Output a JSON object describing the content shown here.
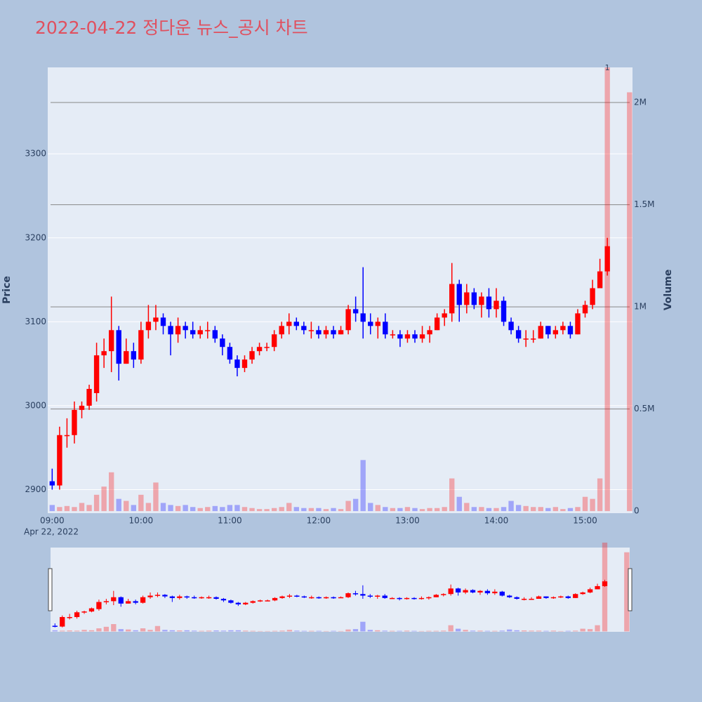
{
  "chart_data": {
    "type": "candlestick",
    "title": "2022-04-22 정다운 뉴스_공시 차트",
    "title_color": "#e0505f",
    "x": [
      "09:00",
      "09:05",
      "09:10",
      "09:15",
      "09:20",
      "09:25",
      "09:30",
      "09:35",
      "09:40",
      "09:45",
      "09:50",
      "09:55",
      "10:00",
      "10:05",
      "10:10",
      "10:15",
      "10:20",
      "10:25",
      "10:30",
      "10:35",
      "10:40",
      "10:45",
      "10:50",
      "10:55",
      "11:00",
      "11:05",
      "11:10",
      "11:15",
      "11:20",
      "11:25",
      "11:30",
      "11:35",
      "11:40",
      "11:45",
      "11:50",
      "11:55",
      "12:00",
      "12:05",
      "12:10",
      "12:15",
      "12:20",
      "12:25",
      "12:30",
      "12:35",
      "12:40",
      "12:45",
      "12:50",
      "12:55",
      "13:00",
      "13:05",
      "13:10",
      "13:15",
      "13:20",
      "13:25",
      "13:30",
      "13:35",
      "13:40",
      "13:45",
      "13:50",
      "13:55",
      "14:00",
      "14:05",
      "14:10",
      "14:15",
      "14:20",
      "14:25",
      "14:30",
      "14:35",
      "14:40",
      "14:45",
      "14:50",
      "14:55",
      "15:00",
      "15:05",
      "15:10",
      "15:15",
      "15:30"
    ],
    "open": [
      2910,
      2905,
      2965,
      2965,
      2995,
      3000,
      3015,
      3060,
      3065,
      3090,
      3050,
      3065,
      3055,
      3090,
      3100,
      3105,
      3095,
      3085,
      3095,
      3090,
      3085,
      3090,
      3090,
      3080,
      3070,
      3055,
      3045,
      3055,
      3065,
      3070,
      3070,
      3085,
      3095,
      3100,
      3095,
      3090,
      3090,
      3085,
      3090,
      3085,
      3090,
      3115,
      3110,
      3100,
      3095,
      3100,
      3085,
      3085,
      3080,
      3085,
      3080,
      3085,
      3090,
      3105,
      3110,
      3145,
      3120,
      3135,
      3120,
      3130,
      3115,
      3125,
      3100,
      3090,
      3080,
      3080,
      3080,
      3095,
      3085,
      3090,
      3095,
      3085,
      3110,
      3120,
      3140,
      3160,
      null
    ],
    "high": [
      2925,
      2975,
      2985,
      3005,
      3005,
      3025,
      3075,
      3080,
      3130,
      3095,
      3080,
      3075,
      3100,
      3120,
      3120,
      3110,
      3100,
      3105,
      3100,
      3100,
      3095,
      3100,
      3095,
      3085,
      3075,
      3060,
      3060,
      3070,
      3075,
      3075,
      3090,
      3100,
      3110,
      3105,
      3100,
      3100,
      3095,
      3095,
      3095,
      3095,
      3120,
      3130,
      3165,
      3110,
      3105,
      3110,
      3090,
      3090,
      3090,
      3090,
      3095,
      3095,
      3110,
      3115,
      3170,
      3150,
      3145,
      3140,
      3135,
      3140,
      3140,
      3130,
      3105,
      3095,
      3090,
      3090,
      3100,
      3095,
      3095,
      3100,
      3100,
      3115,
      3125,
      3150,
      3175,
      3200,
      null
    ],
    "low": [
      2900,
      2900,
      2950,
      2955,
      2985,
      2995,
      3005,
      3045,
      3040,
      3030,
      3050,
      3045,
      3050,
      3080,
      3090,
      3085,
      3060,
      3075,
      3080,
      3080,
      3080,
      3080,
      3075,
      3060,
      3050,
      3035,
      3040,
      3050,
      3060,
      3065,
      3065,
      3080,
      3085,
      3090,
      3085,
      3080,
      3080,
      3080,
      3080,
      3085,
      3085,
      3100,
      3080,
      3085,
      3080,
      3080,
      3080,
      3070,
      3075,
      3075,
      3075,
      3075,
      3090,
      3095,
      3100,
      3100,
      3110,
      3115,
      3105,
      3105,
      3105,
      3095,
      3085,
      3075,
      3070,
      3075,
      3080,
      3080,
      3080,
      3085,
      3080,
      3085,
      3105,
      3115,
      3140,
      3155,
      null
    ],
    "close": [
      2905,
      2965,
      2965,
      2995,
      3000,
      3020,
      3060,
      3065,
      3090,
      3050,
      3065,
      3055,
      3090,
      3100,
      3105,
      3095,
      3085,
      3095,
      3090,
      3085,
      3090,
      3090,
      3080,
      3070,
      3055,
      3045,
      3055,
      3065,
      3070,
      3070,
      3085,
      3095,
      3100,
      3095,
      3090,
      3090,
      3085,
      3090,
      3085,
      3090,
      3115,
      3110,
      3100,
      3095,
      3100,
      3085,
      3085,
      3080,
      3085,
      3080,
      3085,
      3090,
      3105,
      3110,
      3145,
      3120,
      3135,
      3120,
      3130,
      3115,
      3125,
      3100,
      3090,
      3080,
      3080,
      3080,
      3095,
      3085,
      3090,
      3095,
      3085,
      3110,
      3120,
      3140,
      3160,
      3190,
      null
    ],
    "volume": [
      30000,
      20000,
      25000,
      20000,
      40000,
      30000,
      80000,
      120000,
      190000,
      60000,
      50000,
      30000,
      80000,
      40000,
      140000,
      40000,
      30000,
      25000,
      30000,
      20000,
      15000,
      20000,
      25000,
      20000,
      30000,
      30000,
      20000,
      15000,
      10000,
      10000,
      15000,
      20000,
      40000,
      20000,
      15000,
      15000,
      15000,
      10000,
      15000,
      10000,
      50000,
      60000,
      250000,
      40000,
      30000,
      20000,
      15000,
      15000,
      20000,
      15000,
      10000,
      15000,
      15000,
      20000,
      160000,
      70000,
      40000,
      20000,
      20000,
      15000,
      15000,
      20000,
      50000,
      30000,
      25000,
      20000,
      20000,
      15000,
      20000,
      10000,
      15000,
      20000,
      70000,
      60000,
      160000,
      2300000,
      2050000
    ],
    "increasing_color": "#ff0000",
    "decreasing_color": "#0000ff",
    "xlim": [
      "08:57",
      "15:32"
    ],
    "xticks": [
      "09:00",
      "10:00",
      "11:00",
      "12:00",
      "13:00",
      "14:00",
      "15:00"
    ],
    "x_date_label": "Apr 22, 2022",
    "ylabel": "Price",
    "ylim": [
      2872,
      3403
    ],
    "yticks": [
      2900,
      3000,
      3100,
      3200,
      3300
    ],
    "y2label": "Volume",
    "y2lim": [
      -10000,
      2172000
    ],
    "y2ticks": [
      0,
      {
        "value": 500000,
        "label": "0.5M"
      },
      {
        "value": 1000000,
        "label": "1M"
      },
      {
        "value": 1500000,
        "label": "1.5M"
      },
      {
        "value": 2000000,
        "label": "2M"
      }
    ],
    "annotation": "1",
    "grid": true,
    "rangeslider": true
  }
}
